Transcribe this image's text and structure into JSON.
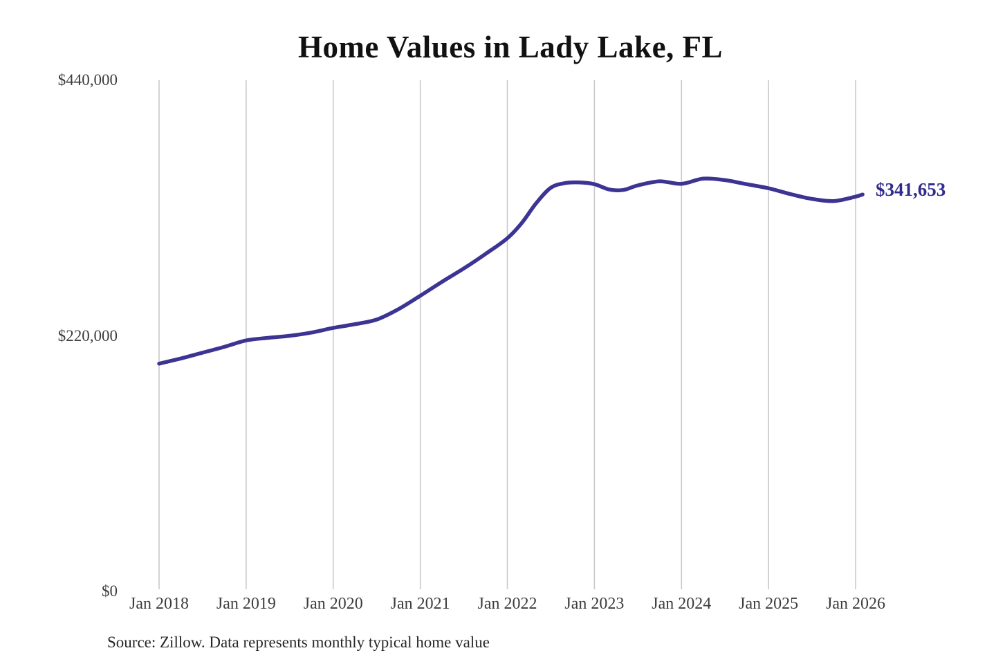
{
  "chart_data": {
    "type": "line",
    "title": "Home Values in Lady Lake, FL",
    "source_note": "Source: Zillow. Data represents monthly typical home value",
    "end_label": "$341,653",
    "latest_value": 341653,
    "xlabel": "",
    "ylabel": "",
    "ylim": [
      0,
      440000
    ],
    "xlim": [
      2018,
      2026.1
    ],
    "grid": "vertical-only",
    "legend": "none",
    "y_ticks": [
      {
        "value": 440000,
        "label": "$440,000"
      },
      {
        "value": 220000,
        "label": "$220,000"
      },
      {
        "value": 0,
        "label": "$0"
      }
    ],
    "x_ticks": [
      {
        "year": 2018,
        "label": "Jan 2018"
      },
      {
        "year": 2019,
        "label": "Jan 2019"
      },
      {
        "year": 2020,
        "label": "Jan 2020"
      },
      {
        "year": 2021,
        "label": "Jan 2021"
      },
      {
        "year": 2022,
        "label": "Jan 2022"
      },
      {
        "year": 2023,
        "label": "Jan 2023"
      },
      {
        "year": 2024,
        "label": "Jan 2024"
      },
      {
        "year": 2025,
        "label": "Jan 2025"
      },
      {
        "year": 2026,
        "label": "Jan 2026"
      }
    ],
    "series": [
      {
        "name": "Monthly typical home value",
        "points": [
          {
            "t": 2018.0,
            "value": 196000
          },
          {
            "t": 2018.25,
            "value": 200500
          },
          {
            "t": 2018.5,
            "value": 205500
          },
          {
            "t": 2018.75,
            "value": 210500
          },
          {
            "t": 2019.0,
            "value": 216000
          },
          {
            "t": 2019.25,
            "value": 218200
          },
          {
            "t": 2019.5,
            "value": 220000
          },
          {
            "t": 2019.75,
            "value": 222800
          },
          {
            "t": 2020.0,
            "value": 226800
          },
          {
            "t": 2020.25,
            "value": 230000
          },
          {
            "t": 2020.5,
            "value": 234000
          },
          {
            "t": 2020.75,
            "value": 243000
          },
          {
            "t": 2021.0,
            "value": 254500
          },
          {
            "t": 2021.25,
            "value": 266500
          },
          {
            "t": 2021.5,
            "value": 278000
          },
          {
            "t": 2021.75,
            "value": 290500
          },
          {
            "t": 2022.0,
            "value": 304000
          },
          {
            "t": 2022.17,
            "value": 317500
          },
          {
            "t": 2022.33,
            "value": 334000
          },
          {
            "t": 2022.5,
            "value": 347500
          },
          {
            "t": 2022.67,
            "value": 351500
          },
          {
            "t": 2022.83,
            "value": 352000
          },
          {
            "t": 2023.0,
            "value": 350500
          },
          {
            "t": 2023.17,
            "value": 346000
          },
          {
            "t": 2023.33,
            "value": 345500
          },
          {
            "t": 2023.5,
            "value": 349500
          },
          {
            "t": 2023.75,
            "value": 353000
          },
          {
            "t": 2024.0,
            "value": 350800
          },
          {
            "t": 2024.25,
            "value": 355300
          },
          {
            "t": 2024.5,
            "value": 354000
          },
          {
            "t": 2024.75,
            "value": 350500
          },
          {
            "t": 2025.0,
            "value": 347000
          },
          {
            "t": 2025.25,
            "value": 342000
          },
          {
            "t": 2025.5,
            "value": 337800
          },
          {
            "t": 2025.75,
            "value": 336000
          },
          {
            "t": 2026.0,
            "value": 339800
          },
          {
            "t": 2026.08,
            "value": 341653
          }
        ]
      }
    ],
    "colors": {
      "line": "#3c3493",
      "end_label": "#2f2c8d",
      "gridline": "#c9c9c9",
      "title": "#111111",
      "axis_text": "#3d3d3d",
      "source_text": "#262626",
      "background": "#ffffff"
    }
  }
}
